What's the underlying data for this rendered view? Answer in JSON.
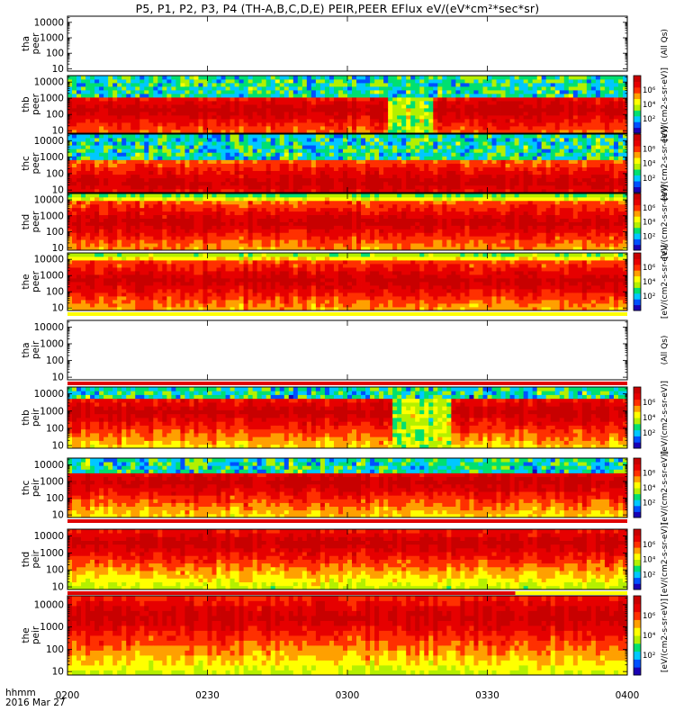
{
  "title": "P5, P1, P2, P3, P4 (TH-A,B,C,D,E) PEIR,PEER EFlux eV/(eV*cm²*sec*sr)",
  "time_caption": {
    "label": "hhmm",
    "date": "2016 Mar 27"
  },
  "x_ticks": [
    "0200",
    "0230",
    "0300",
    "0330",
    "0400"
  ],
  "y_ticks": [
    "10",
    "100",
    "1000",
    "10000"
  ],
  "colorbar_ticks": [
    "10²",
    "10⁴",
    "10⁶"
  ],
  "colorbar_unit": "[eV/(cm2-s-sr-eV)]",
  "colors": {
    "palette": [
      "#1a00b4",
      "#0050ff",
      "#00c8ff",
      "#00e070",
      "#b4f000",
      "#ffff00",
      "#ffa000",
      "#ff3000",
      "#e60000",
      "#c80000"
    ],
    "flag_red": "#e00000",
    "flag_yellow": "#ffff00"
  },
  "chart_data": [
    {
      "type": "heatmap",
      "panel": "tha peer",
      "ylabel": [
        "tha",
        "peer"
      ],
      "yscale": "log",
      "ylim": [
        7,
        25000
      ],
      "x": [
        "0200",
        "0230",
        "0300",
        "0330",
        "0400"
      ],
      "has_data": false,
      "colorbar": false,
      "side_label": "(All Qs)",
      "flag": "none"
    },
    {
      "type": "heatmap",
      "panel": "thb peer",
      "ylabel": [
        "thb",
        "peer"
      ],
      "yscale": "log",
      "ylim": [
        7,
        25000
      ],
      "x": [
        "0200",
        "0230",
        "0300",
        "0330",
        "0400"
      ],
      "has_data": true,
      "colorbar": true,
      "colorbar_ticks": [
        "10²",
        "10⁴",
        "10⁶"
      ],
      "side_label": "[eV/(cm2-s-sr-eV)]",
      "flag": "none",
      "peak_energy_eV": 200,
      "band_top_eV": 1500,
      "background_top": true,
      "features": [
        {
          "from": "0309",
          "to": "0318",
          "note": "dropout"
        }
      ]
    },
    {
      "type": "heatmap",
      "panel": "thc peer",
      "ylabel": [
        "thc",
        "peer"
      ],
      "yscale": "log",
      "ylim": [
        7,
        25000
      ],
      "x": [
        "0200",
        "0230",
        "0300",
        "0330",
        "0400"
      ],
      "has_data": true,
      "colorbar": true,
      "colorbar_ticks": [
        "10²",
        "10⁴",
        "10⁶"
      ],
      "side_label": "[eV/(cm2-s-sr-eV)]",
      "flag": "none",
      "peak_energy_eV": 30,
      "band_top_eV": 600,
      "background_top": true,
      "features": []
    },
    {
      "type": "heatmap",
      "panel": "thd peer",
      "ylabel": [
        "thd",
        "peer"
      ],
      "yscale": "log",
      "ylim": [
        7,
        25000
      ],
      "x": [
        "0200",
        "0230",
        "0300",
        "0330",
        "0400"
      ],
      "has_data": true,
      "colorbar": true,
      "colorbar_ticks": [
        "10²",
        "10⁴",
        "10⁶"
      ],
      "side_label": "[eV/(cm2-s-sr-eV)]",
      "flag": "none",
      "peak_energy_eV": 400,
      "band_top_eV": 8000,
      "background_top": false,
      "features": []
    },
    {
      "type": "heatmap",
      "panel": "the peer",
      "ylabel": [
        "the",
        "peer"
      ],
      "yscale": "log",
      "ylim": [
        7,
        25000
      ],
      "x": [
        "0200",
        "0230",
        "0300",
        "0330",
        "0400"
      ],
      "has_data": true,
      "colorbar": true,
      "colorbar_ticks": [
        "10²",
        "10⁴",
        "10⁶"
      ],
      "side_label": "[eV/(cm2-s-sr-eV)]",
      "flag": "yellow",
      "peak_energy_eV": 500,
      "band_top_eV": 9000,
      "background_top": false,
      "features": []
    },
    {
      "type": "heatmap",
      "panel": "tha peir",
      "ylabel": [
        "tha",
        "peir"
      ],
      "yscale": "log",
      "ylim": [
        7,
        25000
      ],
      "x": [
        "0200",
        "0230",
        "0300",
        "0330",
        "0400"
      ],
      "has_data": false,
      "colorbar": false,
      "side_label": "(All Qs)",
      "flag": "red"
    },
    {
      "type": "heatmap",
      "panel": "thb peir",
      "ylabel": [
        "thb",
        "peir"
      ],
      "yscale": "log",
      "ylim": [
        7,
        25000
      ],
      "x": [
        "0200",
        "0230",
        "0300",
        "0330",
        "0400"
      ],
      "has_data": true,
      "colorbar": true,
      "colorbar_ticks": [
        "10²",
        "10⁴",
        "10⁶"
      ],
      "side_label": "[eV/(cm2-s-sr-eV)]",
      "flag": "none",
      "peak_energy_eV": 900,
      "band_top_eV": 5000,
      "background_top": true,
      "features": [
        {
          "from": "0310",
          "to": "0322",
          "note": "dropout"
        }
      ]
    },
    {
      "type": "heatmap",
      "panel": "thc peir",
      "ylabel": [
        "thc",
        "peir"
      ],
      "yscale": "log",
      "ylim": [
        7,
        25000
      ],
      "x": [
        "0200",
        "0230",
        "0300",
        "0330",
        "0400"
      ],
      "has_data": true,
      "colorbar": true,
      "colorbar_ticks": [
        "10²",
        "10⁴",
        "10⁶"
      ],
      "side_label": "[eV/(cm2-s-sr-eV)]",
      "flag": "red",
      "peak_energy_eV": 900,
      "band_top_eV": 4000,
      "background_top": true,
      "features": []
    },
    {
      "type": "heatmap",
      "panel": "thd peir",
      "ylabel": [
        "thd",
        "peir"
      ],
      "yscale": "log",
      "ylim": [
        7,
        25000
      ],
      "x": [
        "0200",
        "0230",
        "0300",
        "0330",
        "0400"
      ],
      "has_data": true,
      "colorbar": true,
      "colorbar_ticks": [
        "10²",
        "10⁴",
        "10⁶"
      ],
      "side_label": "[eV/(cm2-s-sr-eV)]",
      "flag": "red_then_yellow",
      "peak_energy_eV": 4000,
      "band_top_eV": 20000,
      "background_top": false,
      "features": []
    },
    {
      "type": "heatmap",
      "panel": "the peir",
      "ylabel": [
        "the",
        "peir"
      ],
      "yscale": "log",
      "ylim": [
        7,
        25000
      ],
      "x": [
        "0200",
        "0230",
        "0300",
        "0330",
        "0400"
      ],
      "has_data": true,
      "colorbar": true,
      "colorbar_ticks": [
        "10²",
        "10⁴",
        "10⁶"
      ],
      "side_label": "[eV/(cm2-s-sr-eV)]",
      "flag": "none",
      "peak_energy_eV": 3000,
      "band_top_eV": 20000,
      "background_top": false,
      "features": []
    }
  ]
}
